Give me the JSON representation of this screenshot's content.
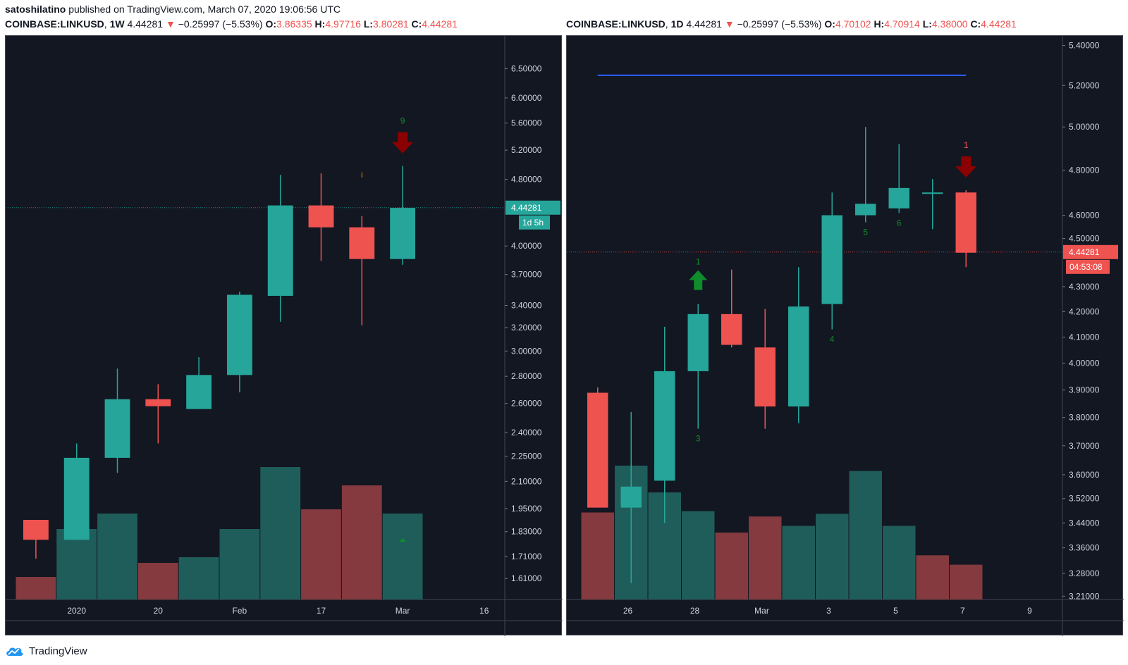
{
  "header": {
    "author": "satoshilatino",
    "published_text": "published on TradingView.com, March 07, 2020 19:06:56 UTC"
  },
  "footer": {
    "brand": "TradingView",
    "logo_icon": "tradingview-cloud-logo-icon"
  },
  "colors": {
    "up": "#26a69a",
    "down": "#ef5350",
    "vol_up": "#1f5d5b",
    "vol_down": "#843a3e",
    "bg": "#131722",
    "axis_text": "#d1d4dc",
    "ma_line": "#2962ff",
    "seq_green": "#0f8c2b",
    "seq_red": "#8b0000"
  },
  "chart_data": [
    {
      "type": "candlestick",
      "symbol": "COINBASE:LINKUSD",
      "interval": "1W",
      "last": "4.44281",
      "arrow": "▼",
      "change": "−0.25997 (−5.53%)",
      "ohlc_labels": [
        "O:",
        "H:",
        "L:",
        "C:"
      ],
      "ohlc_values": [
        "3.86335",
        "4.97716",
        "3.80281",
        "4.44281"
      ],
      "price_tag": "4.44281",
      "countdown": "1d 5h",
      "log_scale": true,
      "ylim": [
        1.52,
        7.0
      ],
      "y_ticks": [
        6.5,
        6.0,
        5.6,
        5.2,
        4.8,
        4.0,
        3.7,
        3.4,
        3.2,
        3.0,
        2.8,
        2.6,
        2.4,
        2.25,
        2.1,
        1.95,
        1.83,
        1.71,
        1.61
      ],
      "y_tick_labels": [
        "6.50000",
        "6.00000",
        "5.60000",
        "5.20000",
        "4.80000",
        "4.00000",
        "3.70000",
        "3.40000",
        "3.20000",
        "3.00000",
        "2.80000",
        "2.60000",
        "2.40000",
        "2.25000",
        "2.10000",
        "1.95000",
        "1.83000",
        "1.71000",
        "1.61000"
      ],
      "x_tick_labels": [
        "2020",
        "20",
        "Feb",
        "17",
        "Mar",
        "16"
      ],
      "x_tick_index": [
        1.5,
        3.5,
        5.5,
        7.5,
        9.5,
        11.5
      ],
      "candles": [
        {
          "o": 1.89,
          "h": 1.89,
          "l": 1.7,
          "c": 1.79
        },
        {
          "o": 1.79,
          "h": 2.33,
          "l": 1.79,
          "c": 2.24
        },
        {
          "o": 2.24,
          "h": 2.86,
          "l": 2.15,
          "c": 2.63
        },
        {
          "o": 2.63,
          "h": 2.74,
          "l": 2.33,
          "c": 2.58
        },
        {
          "o": 2.56,
          "h": 2.95,
          "l": 2.56,
          "c": 2.81
        },
        {
          "o": 2.81,
          "h": 3.53,
          "l": 2.68,
          "c": 3.5
        },
        {
          "o": 3.49,
          "h": 4.86,
          "l": 3.25,
          "c": 4.47
        },
        {
          "o": 4.47,
          "h": 4.88,
          "l": 3.84,
          "c": 4.21
        },
        {
          "o": 4.21,
          "h": 4.34,
          "l": 3.22,
          "c": 3.86
        },
        {
          "o": 3.86,
          "h": 4.98,
          "l": 3.8,
          "c": 4.44
        }
      ],
      "volumes": [
        {
          "v": 0.16,
          "dir": "down"
        },
        {
          "v": 0.5,
          "dir": "up"
        },
        {
          "v": 0.61,
          "dir": "up"
        },
        {
          "v": 0.26,
          "dir": "down"
        },
        {
          "v": 0.3,
          "dir": "up"
        },
        {
          "v": 0.5,
          "dir": "up"
        },
        {
          "v": 0.94,
          "dir": "up"
        },
        {
          "v": 0.64,
          "dir": "down"
        },
        {
          "v": 0.81,
          "dir": "down"
        },
        {
          "v": 0.61,
          "dir": "up"
        }
      ],
      "markers": [
        {
          "i": 9,
          "label": "9",
          "kind": "red-arrow-down"
        },
        {
          "i": 8,
          "label": "i",
          "kind": "orange-text"
        },
        {
          "i": 9,
          "label": "",
          "kind": "green-small"
        }
      ]
    },
    {
      "type": "candlestick",
      "symbol": "COINBASE:LINKUSD",
      "interval": "1D",
      "last": "4.44281",
      "arrow": "▼",
      "change": "−0.25997 (−5.53%)",
      "ohlc_labels": [
        "O:",
        "H:",
        "L:",
        "C:"
      ],
      "ohlc_values": [
        "4.70102",
        "4.70914",
        "4.38000",
        "4.44281"
      ],
      "price_tag": "4.44281",
      "countdown": "04:53:08",
      "log_scale": true,
      "ylim": [
        3.2,
        5.42
      ],
      "y_ticks": [
        5.4,
        5.2,
        5.0,
        4.8,
        4.6,
        4.5,
        4.3,
        4.2,
        4.1,
        4.0,
        3.9,
        3.8,
        3.7,
        3.6,
        3.52,
        3.44,
        3.36,
        3.28,
        3.21
      ],
      "y_tick_labels": [
        "5.40000",
        "5.20000",
        "5.00000",
        "4.80000",
        "4.60000",
        "4.50000",
        "4.30000",
        "4.20000",
        "4.10000",
        "4.00000",
        "3.90000",
        "3.80000",
        "3.70000",
        "3.60000",
        "3.52000",
        "3.44000",
        "3.36000",
        "3.28000",
        "3.21000"
      ],
      "x_tick_labels": [
        "26",
        "28",
        "Mar",
        "3",
        "5",
        "7",
        "9"
      ],
      "x_tick_index": [
        1.4,
        3.4,
        5.4,
        7.4,
        9.4,
        11.4,
        13.4
      ],
      "ma_level": 5.25,
      "candles": [
        {
          "o": 3.89,
          "h": 3.91,
          "l": 3.49,
          "c": 3.49
        },
        {
          "o": 3.49,
          "h": 3.82,
          "l": 3.25,
          "c": 3.56
        },
        {
          "o": 3.58,
          "h": 4.14,
          "l": 3.44,
          "c": 3.97
        },
        {
          "o": 3.97,
          "h": 4.23,
          "l": 3.76,
          "c": 4.19
        },
        {
          "o": 4.19,
          "h": 4.37,
          "l": 4.06,
          "c": 4.07
        },
        {
          "o": 4.06,
          "h": 4.21,
          "l": 3.76,
          "c": 3.84
        },
        {
          "o": 3.84,
          "h": 4.38,
          "l": 3.78,
          "c": 4.22
        },
        {
          "o": 4.23,
          "h": 4.7,
          "l": 4.13,
          "c": 4.6
        },
        {
          "o": 4.6,
          "h": 5.0,
          "l": 4.57,
          "c": 4.65
        },
        {
          "o": 4.63,
          "h": 4.92,
          "l": 4.61,
          "c": 4.72
        },
        {
          "o": 4.7,
          "h": 4.76,
          "l": 4.54,
          "c": 4.7
        },
        {
          "o": 4.7,
          "h": 4.71,
          "l": 4.38,
          "c": 4.44
        }
      ],
      "volumes": [
        {
          "v": 0.65,
          "dir": "down"
        },
        {
          "v": 1.0,
          "dir": "up"
        },
        {
          "v": 0.8,
          "dir": "up"
        },
        {
          "v": 0.66,
          "dir": "up"
        },
        {
          "v": 0.5,
          "dir": "down"
        },
        {
          "v": 0.62,
          "dir": "down"
        },
        {
          "v": 0.55,
          "dir": "up"
        },
        {
          "v": 0.64,
          "dir": "up"
        },
        {
          "v": 0.96,
          "dir": "up"
        },
        {
          "v": 0.55,
          "dir": "up"
        },
        {
          "v": 0.33,
          "dir": "down"
        },
        {
          "v": 0.26,
          "dir": "down"
        }
      ],
      "markers": [
        {
          "i": 3,
          "label": "1",
          "kind": "green-arrow-up"
        },
        {
          "i": 11,
          "label": "1",
          "kind": "red-arrow-down"
        },
        {
          "i": 3,
          "label": "3",
          "kind": "green-text"
        },
        {
          "i": 7,
          "label": "4",
          "kind": "green-text"
        },
        {
          "i": 8,
          "label": "5",
          "kind": "green-text"
        },
        {
          "i": 9,
          "label": "6",
          "kind": "green-text"
        }
      ]
    }
  ]
}
